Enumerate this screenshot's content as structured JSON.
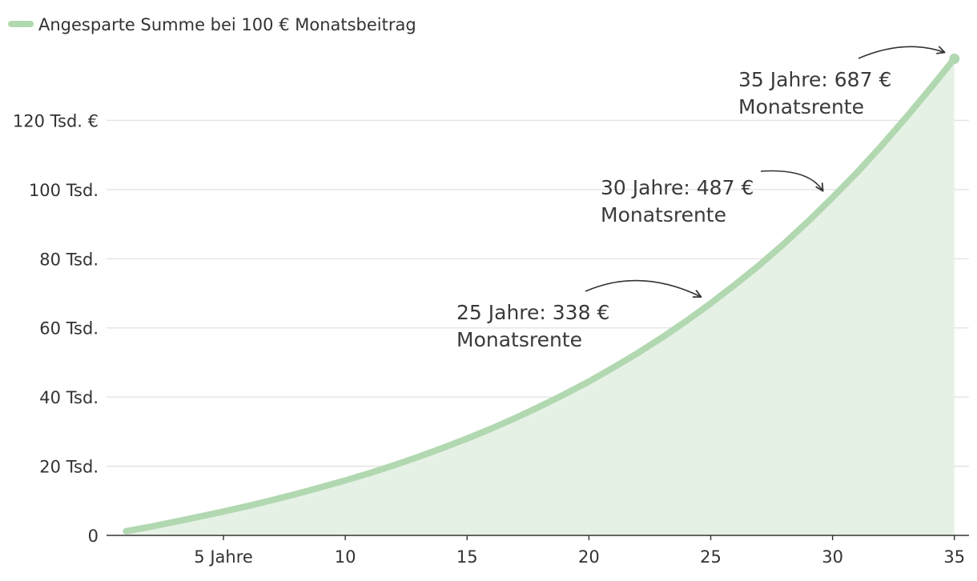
{
  "colors": {
    "line": "#b1d8b0",
    "area": "#e6f1e5",
    "grid": "#e2e2e2",
    "axis": "#333333",
    "text": "#333333"
  },
  "chart_data": {
    "type": "area",
    "title": "",
    "xlabel": "",
    "ylabel": "",
    "legend": {
      "label": "Angesparte Summe bei 100 € Monatsbeitrag",
      "position": "top-left"
    },
    "x": [
      1,
      2,
      3,
      4,
      5,
      6,
      7,
      8,
      9,
      10,
      11,
      12,
      13,
      14,
      15,
      16,
      17,
      18,
      19,
      20,
      21,
      22,
      23,
      24,
      25,
      26,
      27,
      28,
      29,
      30,
      31,
      32,
      33,
      34,
      35
    ],
    "series": [
      {
        "name": "Angesparte Summe bei 100 € Monatsbeitrag",
        "values": [
          1200,
          2500,
          3900,
          5400,
          6900,
          8500,
          10200,
          12000,
          13900,
          15900,
          18000,
          20300,
          22700,
          25300,
          28000,
          30900,
          34000,
          37300,
          40800,
          44500,
          48500,
          52700,
          57200,
          62000,
          67100,
          72500,
          78200,
          84300,
          90800,
          97700,
          104900,
          112600,
          120700,
          129100,
          137800
        ]
      }
    ],
    "xlim": [
      0.2,
      35.6
    ],
    "ylim": [
      0,
      140000
    ],
    "yticks": [
      {
        "value": 0,
        "label": "0"
      },
      {
        "value": 20000,
        "label": "20 Tsd."
      },
      {
        "value": 40000,
        "label": "40 Tsd."
      },
      {
        "value": 60000,
        "label": "60 Tsd."
      },
      {
        "value": 80000,
        "label": "80 Tsd."
      },
      {
        "value": 100000,
        "label": "100 Tsd."
      },
      {
        "value": 120000,
        "label": "120 Tsd. €"
      }
    ],
    "xticks": [
      {
        "value": 5,
        "label": "5 Jahre"
      },
      {
        "value": 10,
        "label": "10"
      },
      {
        "value": 15,
        "label": "15"
      },
      {
        "value": 20,
        "label": "20"
      },
      {
        "value": 25,
        "label": "25"
      },
      {
        "value": 30,
        "label": "30"
      },
      {
        "value": 35,
        "label": "35"
      }
    ],
    "grid": true,
    "annotations": [
      {
        "x": 25,
        "line1": "25 Jahre: 338 €",
        "line2": "Monatsrente"
      },
      {
        "x": 30,
        "line1": "30 Jahre: 487 €",
        "line2": "Monatsrente"
      },
      {
        "x": 35,
        "line1": "35 Jahre: 687 €",
        "line2": "Monatsrente"
      }
    ]
  }
}
